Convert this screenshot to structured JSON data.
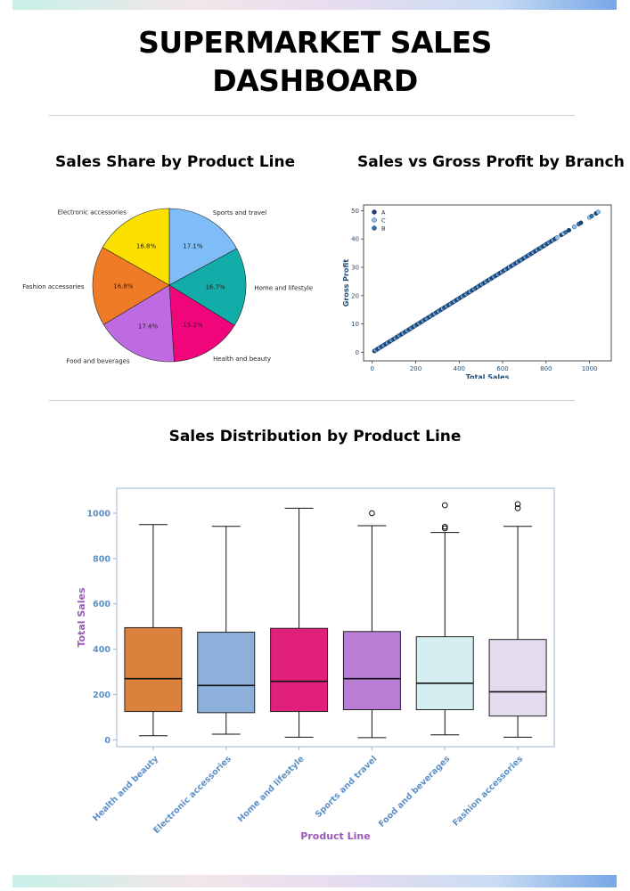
{
  "page": {
    "title_line1": "SUPERMARKET SALES",
    "title_line2": "DASHBOARD"
  },
  "colors": {
    "accent_blue": "#1f4e79",
    "axis_label_purple": "#9b59b6",
    "tick_blue": "#5b8fc7"
  },
  "chart_data": [
    {
      "type": "pie",
      "title": "Sales Share by Product Line",
      "labels": [
        "Sports and travel",
        "Home and lifestyle",
        "Health and beauty",
        "Food and beverages",
        "Fashion accessories",
        "Electronic accessories"
      ],
      "values": [
        17.1,
        16.7,
        15.2,
        17.4,
        16.8,
        16.8
      ],
      "pct_labels": [
        "17.1%",
        "16.7%",
        "15.2%",
        "17.4%",
        "16.8%",
        "16.8%"
      ],
      "colors": [
        "#7ebdf7",
        "#12ada8",
        "#f0067a",
        "#be6ae0",
        "#f07b26",
        "#fbe000"
      ]
    },
    {
      "type": "scatter",
      "title": "Sales vs Gross Profit by Branch",
      "xlabel": "Total Sales",
      "ylabel": "Gross Profit",
      "xlim": [
        -40,
        1100
      ],
      "ylim": [
        -3,
        52
      ],
      "xticks": [
        0,
        200,
        400,
        600,
        800,
        1000
      ],
      "yticks": [
        0,
        10,
        20,
        30,
        40,
        50
      ],
      "legend": [
        "A",
        "C",
        "B"
      ],
      "legend_colors": [
        "#1b3f6e",
        "#8fc3ea",
        "#2f6fae"
      ],
      "legend_position": "top-left",
      "relation": "Gross Profit = 0.0476 × Total Sales",
      "x_range": [
        10,
        1045
      ]
    },
    {
      "type": "box",
      "title": "Sales Distribution by Product Line",
      "xlabel": "Product Line",
      "ylabel": "Total Sales",
      "ylim": [
        -30,
        1110
      ],
      "yticks": [
        0,
        200,
        400,
        600,
        800,
        1000
      ],
      "categories": [
        "Health and beauty",
        "Electronic accessories",
        "Home and lifestyle",
        "Sports and travel",
        "Food and beverages",
        "Fashion accessories"
      ],
      "colors": [
        "#dc803e",
        "#8cb0da",
        "#e1207c",
        "#b97ed4",
        "#d4eef1",
        "#e5dbef"
      ],
      "boxes": [
        {
          "whisker_low": 18,
          "q1": 125,
          "median": 270,
          "q3": 495,
          "whisker_high": 950,
          "fliers": []
        },
        {
          "whisker_low": 25,
          "q1": 120,
          "median": 240,
          "q3": 475,
          "whisker_high": 942,
          "fliers": []
        },
        {
          "whisker_low": 12,
          "q1": 125,
          "median": 258,
          "q3": 492,
          "whisker_high": 1022,
          "fliers": []
        },
        {
          "whisker_low": 10,
          "q1": 133,
          "median": 270,
          "q3": 478,
          "whisker_high": 945,
          "fliers": [
            1000
          ]
        },
        {
          "whisker_low": 22,
          "q1": 133,
          "median": 250,
          "q3": 455,
          "whisker_high": 915,
          "fliers": [
            933,
            940,
            1035
          ]
        },
        {
          "whisker_low": 12,
          "q1": 105,
          "median": 212,
          "q3": 443,
          "whisker_high": 942,
          "fliers": [
            1022,
            1040
          ]
        }
      ]
    }
  ]
}
